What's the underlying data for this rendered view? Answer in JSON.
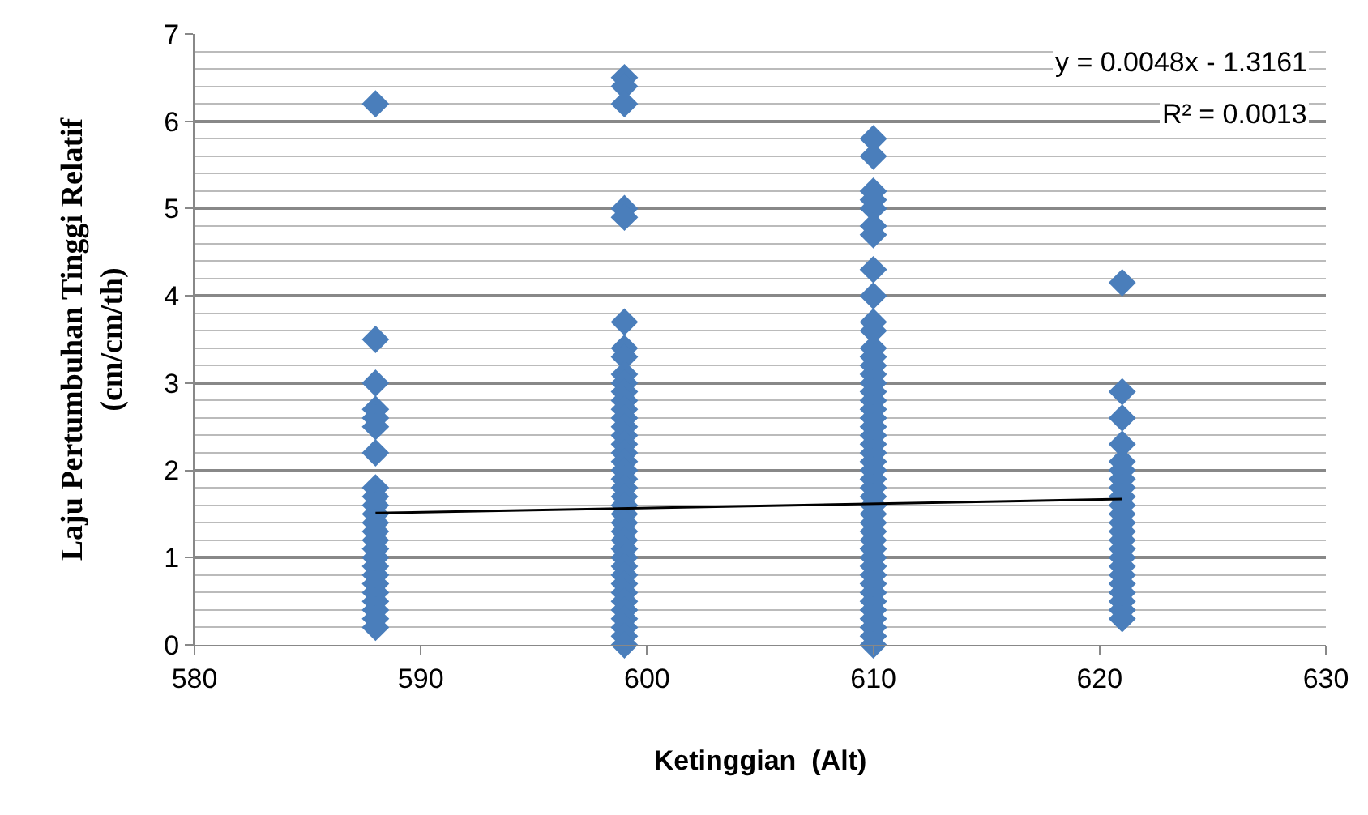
{
  "chart_data": {
    "type": "scatter",
    "xlabel": "Ketinggian  (Alt)",
    "ylabel": "Laju Pertumbuhan Tinggi Relatif\n(cm/cm/th)",
    "xlim": [
      580,
      630
    ],
    "xticks": [
      580,
      590,
      600,
      610,
      620,
      630
    ],
    "ylim": [
      0,
      7
    ],
    "yticks": [
      0,
      1,
      2,
      3,
      4,
      5,
      6,
      7
    ],
    "grid": "y",
    "marker": "diamond",
    "annotations": [
      "y = 0.0048x - 1.3161",
      "R² = 0.0013"
    ],
    "series": [
      {
        "color": "#4a7ebb",
        "x": [
          588,
          588,
          588,
          588,
          588,
          588,
          588,
          588,
          588,
          588,
          588,
          588,
          588,
          588,
          588,
          588,
          588,
          588,
          588,
          588,
          588,
          588,
          588,
          588,
          599,
          599,
          599,
          599,
          599,
          599,
          599,
          599,
          599,
          599,
          599,
          599,
          599,
          599,
          599,
          599,
          599,
          599,
          599,
          599,
          599,
          599,
          599,
          599,
          599,
          599,
          599,
          599,
          599,
          599,
          599,
          599,
          599,
          599,
          599,
          599,
          599,
          599,
          599,
          599,
          610,
          610,
          610,
          610,
          610,
          610,
          610,
          610,
          610,
          610,
          610,
          610,
          610,
          610,
          610,
          610,
          610,
          610,
          610,
          610,
          610,
          610,
          610,
          610,
          610,
          610,
          610,
          610,
          610,
          610,
          610,
          610,
          610,
          610,
          610,
          610,
          610,
          610,
          610,
          610,
          610,
          610,
          610,
          610,
          610,
          610,
          621,
          621,
          621,
          621,
          621,
          621,
          621,
          621,
          621,
          621,
          621,
          621,
          621,
          621,
          621,
          621,
          621,
          621,
          621,
          621,
          621,
          621,
          621
        ],
        "values": [
          6.2,
          3.5,
          3.0,
          2.7,
          2.6,
          2.5,
          2.2,
          1.8,
          1.7,
          1.6,
          1.5,
          1.4,
          1.3,
          1.2,
          1.1,
          1.0,
          0.9,
          0.8,
          0.7,
          0.6,
          0.5,
          0.4,
          0.3,
          0.2,
          6.5,
          6.4,
          6.2,
          5.0,
          4.9,
          3.7,
          3.4,
          3.3,
          3.1,
          3.0,
          2.9,
          2.8,
          2.7,
          2.6,
          2.5,
          2.4,
          2.3,
          2.2,
          2.1,
          2.0,
          1.9,
          1.8,
          1.7,
          1.6,
          1.5,
          1.4,
          1.3,
          1.2,
          1.1,
          1.0,
          0.9,
          0.8,
          0.7,
          0.6,
          0.5,
          0.4,
          0.3,
          0.2,
          0.1,
          0.0,
          5.8,
          5.6,
          5.2,
          5.1,
          5.0,
          4.8,
          4.7,
          4.3,
          4.0,
          3.7,
          3.6,
          3.4,
          3.3,
          3.2,
          3.1,
          3.0,
          2.9,
          2.8,
          2.7,
          2.6,
          2.5,
          2.4,
          2.3,
          2.2,
          2.1,
          2.0,
          1.9,
          1.8,
          1.7,
          1.6,
          1.5,
          1.4,
          1.3,
          1.2,
          1.1,
          1.0,
          0.9,
          0.8,
          0.7,
          0.6,
          0.5,
          0.4,
          0.3,
          0.2,
          0.1,
          0.0,
          4.15,
          2.9,
          2.6,
          2.3,
          2.1,
          2.0,
          1.9,
          1.8,
          1.7,
          1.6,
          1.5,
          1.4,
          1.3,
          1.2,
          1.1,
          1.0,
          0.9,
          0.8,
          0.7,
          0.6,
          0.5,
          0.4,
          0.3
        ]
      },
      {
        "type": "line",
        "color": "#000000",
        "x": [
          588,
          621
        ],
        "values": [
          1.51,
          1.67
        ],
        "marker": "none"
      }
    ]
  }
}
